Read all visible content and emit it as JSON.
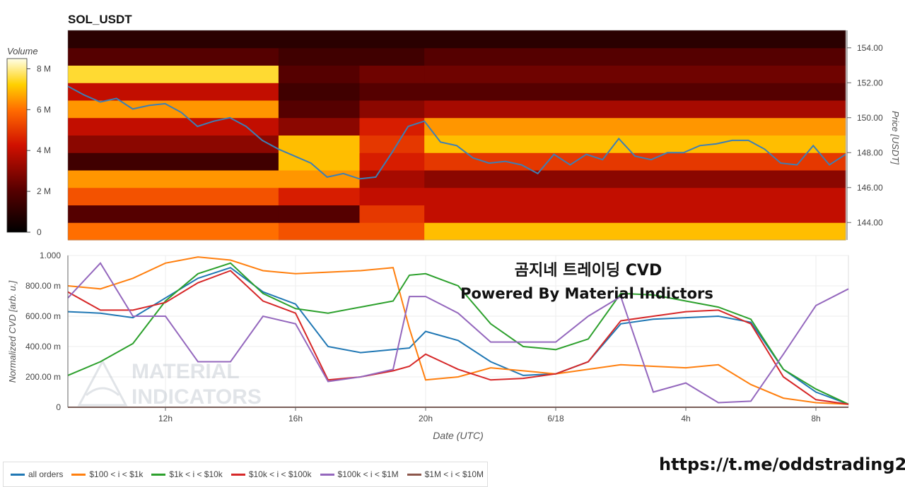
{
  "title": "SOL_USDT",
  "footer_url": "https://t.me/oddstrading2",
  "colors": {
    "heat_low": "#000000",
    "heat_mid": "#ff2a00",
    "heat_high": "#ffffb0",
    "price_line": "#3c7fb6"
  },
  "heatmap": {
    "colorbar_title": "Volume",
    "colorbar_ticks": [
      "0",
      "2 M",
      "4 M",
      "6 M",
      "8 M"
    ],
    "colorbar_range": [
      0,
      8.5
    ],
    "price_axis_label": "Price [USDT]",
    "price_ticks": [
      "144.00",
      "146.00",
      "148.00",
      "150.00",
      "152.00",
      "154.00"
    ],
    "price_range": [
      143.0,
      155.0
    ]
  },
  "cvd": {
    "y_axis_label": "Normalized CVD [arb. u.]",
    "y_ticks": [
      "0",
      "200.00 m",
      "400.00 m",
      "600.00 m",
      "800.00 m",
      "1.000"
    ],
    "x_axis_label": "Date (UTC)",
    "x_ticks": [
      "12h",
      "16h",
      "20h",
      "6/18",
      "4h",
      "8h"
    ],
    "watermark_line1": "MATERIAL",
    "watermark_line2": "INDICATORS",
    "annotation_line1": "곰지네 트레이딩 CVD",
    "annotation_line2": "Powered By Material Indictors"
  },
  "legend": [
    {
      "label": "all orders",
      "color": "#1f77b4"
    },
    {
      "label": "$100 < i < $1k",
      "color": "#ff7f0e"
    },
    {
      "label": "$1k < i < $10k",
      "color": "#2ca02c"
    },
    {
      "label": "$10k < i < $100k",
      "color": "#d62728"
    },
    {
      "label": "$100k < i < $1M",
      "color": "#9467bd"
    },
    {
      "label": "$1M < i < $10M",
      "color": "#8c564b"
    }
  ],
  "chart_data": [
    {
      "type": "heatmap",
      "title": "SOL_USDT",
      "ylabel": "Price [USDT]",
      "ylim": [
        143.0,
        155.0
      ],
      "colorbar": "Volume",
      "x_range_hours": [
        9.0,
        33.0
      ],
      "price_series": {
        "t": [
          9.0,
          9.5,
          10.0,
          10.5,
          11.0,
          11.5,
          12.0,
          12.5,
          13.0,
          13.5,
          14.0,
          14.5,
          15.0,
          15.5,
          16.0,
          16.5,
          17.0,
          17.5,
          18.0,
          18.5,
          19.0,
          19.5,
          20.0,
          20.5,
          21.0,
          21.5,
          22.0,
          22.5,
          23.0,
          23.5,
          24.0,
          24.5,
          25.0,
          25.5,
          26.0,
          26.5,
          27.0,
          27.5,
          28.0,
          28.5,
          29.0,
          29.5,
          30.0,
          30.5,
          31.0,
          31.5,
          32.0,
          32.5,
          33.0
        ],
        "v": [
          151.8,
          151.3,
          150.9,
          151.1,
          150.5,
          150.7,
          150.8,
          150.3,
          149.5,
          149.8,
          150.0,
          149.5,
          148.7,
          148.2,
          147.8,
          147.4,
          146.6,
          146.8,
          146.5,
          146.6,
          148.0,
          149.5,
          149.8,
          148.6,
          148.4,
          147.7,
          147.4,
          147.5,
          147.3,
          146.8,
          147.9,
          147.3,
          147.9,
          147.6,
          148.8,
          147.8,
          147.6,
          148.0,
          148.0,
          148.4,
          148.5,
          148.7,
          148.7,
          148.2,
          147.4,
          147.3,
          148.4,
          147.3,
          147.9
        ]
      },
      "price_bands": {
        "prices": [
          143.5,
          144.5,
          145.5,
          146.5,
          147.5,
          148.5,
          149.5,
          150.5,
          151.5,
          152.5,
          153.5,
          154.5
        ],
        "segments_hours": [
          9.0,
          15.5,
          18.0,
          20.0,
          33.0
        ],
        "volume_M": [
          [
            6.0,
            5.5,
            5.5,
            7.0
          ],
          [
            2.0,
            2.0,
            5.0,
            4.0
          ],
          [
            5.5,
            4.5,
            4.0,
            4.0
          ],
          [
            6.5,
            6.5,
            3.5,
            3.0
          ],
          [
            1.5,
            7.0,
            4.5,
            5.0
          ],
          [
            3.0,
            7.0,
            5.0,
            7.0
          ],
          [
            4.0,
            3.0,
            4.5,
            6.5
          ],
          [
            6.5,
            2.0,
            3.0,
            3.5
          ],
          [
            4.0,
            1.5,
            2.0,
            2.0
          ],
          [
            7.5,
            2.0,
            2.5,
            2.5
          ],
          [
            2.0,
            1.5,
            1.5,
            2.0
          ],
          [
            1.0,
            1.0,
            1.0,
            1.0
          ]
        ]
      }
    },
    {
      "type": "line",
      "xlabel": "Date (UTC)",
      "ylabel": "Normalized CVD [arb. u.]",
      "ylim": [
        0,
        1.0
      ],
      "x_ticks": [
        "12h",
        "16h",
        "20h",
        "6/18",
        "4h",
        "8h"
      ],
      "x": [
        9.0,
        10.0,
        11.0,
        12.0,
        13.0,
        14.0,
        15.0,
        16.0,
        17.0,
        18.0,
        19.0,
        19.5,
        20.0,
        21.0,
        22.0,
        23.0,
        24.0,
        25.0,
        26.0,
        27.0,
        28.0,
        29.0,
        30.0,
        31.0,
        32.0,
        33.0
      ],
      "series": [
        {
          "name": "all orders",
          "values": [
            0.63,
            0.62,
            0.59,
            0.72,
            0.85,
            0.92,
            0.76,
            0.68,
            0.4,
            0.36,
            0.38,
            0.39,
            0.5,
            0.44,
            0.3,
            0.21,
            0.22,
            0.3,
            0.55,
            0.58,
            0.59,
            0.6,
            0.56,
            0.25,
            0.1,
            0.02
          ]
        },
        {
          "name": "$100 < i < $1k",
          "values": [
            0.8,
            0.78,
            0.85,
            0.95,
            0.99,
            0.97,
            0.9,
            0.88,
            0.89,
            0.9,
            0.92,
            0.52,
            0.18,
            0.2,
            0.26,
            0.24,
            0.22,
            0.25,
            0.28,
            0.27,
            0.26,
            0.28,
            0.15,
            0.06,
            0.03,
            0.02
          ]
        },
        {
          "name": "$1k < i < $10k",
          "values": [
            0.21,
            0.3,
            0.42,
            0.7,
            0.88,
            0.95,
            0.75,
            0.65,
            0.62,
            0.66,
            0.7,
            0.87,
            0.88,
            0.8,
            0.55,
            0.4,
            0.38,
            0.45,
            0.75,
            0.74,
            0.7,
            0.66,
            0.58,
            0.25,
            0.12,
            0.02
          ]
        },
        {
          "name": "$10k < i < $100k",
          "values": [
            0.76,
            0.64,
            0.64,
            0.69,
            0.82,
            0.9,
            0.7,
            0.62,
            0.18,
            0.2,
            0.24,
            0.27,
            0.35,
            0.25,
            0.18,
            0.19,
            0.22,
            0.3,
            0.57,
            0.6,
            0.63,
            0.64,
            0.55,
            0.2,
            0.05,
            0.02
          ]
        },
        {
          "name": "$100k < i < $1M",
          "values": [
            0.72,
            0.95,
            0.6,
            0.6,
            0.3,
            0.3,
            0.6,
            0.55,
            0.17,
            0.2,
            0.25,
            0.73,
            0.73,
            0.62,
            0.43,
            0.43,
            0.43,
            0.6,
            0.73,
            0.1,
            0.16,
            0.03,
            0.04,
            0.35,
            0.67,
            0.78
          ]
        },
        {
          "name": "$1M < i < $10M",
          "values": [
            0,
            0,
            0,
            0,
            0,
            0,
            0,
            0,
            0,
            0,
            0,
            0,
            0,
            0,
            0,
            0,
            0,
            0,
            0,
            0,
            0,
            0,
            0,
            0,
            0,
            0
          ]
        }
      ]
    }
  ]
}
